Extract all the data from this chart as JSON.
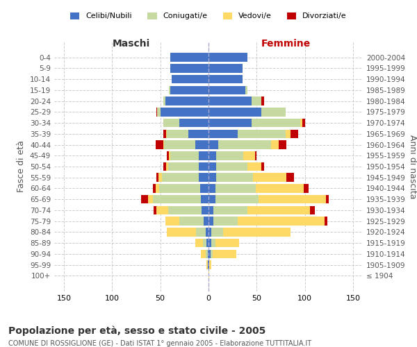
{
  "age_groups": [
    "100+",
    "95-99",
    "90-94",
    "85-89",
    "80-84",
    "75-79",
    "70-74",
    "65-69",
    "60-64",
    "55-59",
    "50-54",
    "45-49",
    "40-44",
    "35-39",
    "30-34",
    "25-29",
    "20-24",
    "15-19",
    "10-14",
    "5-9",
    "0-4"
  ],
  "birth_years": [
    "≤ 1904",
    "1905-1909",
    "1910-1914",
    "1915-1919",
    "1920-1924",
    "1925-1929",
    "1930-1934",
    "1935-1939",
    "1940-1944",
    "1945-1949",
    "1950-1954",
    "1955-1959",
    "1960-1964",
    "1965-1969",
    "1970-1974",
    "1975-1979",
    "1980-1984",
    "1985-1989",
    "1990-1994",
    "1995-1999",
    "2000-2004"
  ],
  "maschi_celibi": [
    0,
    1,
    1,
    2,
    3,
    5,
    7,
    8,
    9,
    10,
    10,
    10,
    14,
    21,
    30,
    50,
    45,
    40,
    38,
    40,
    40
  ],
  "maschi_coniugati": [
    0,
    0,
    2,
    4,
    10,
    25,
    35,
    50,
    42,
    38,
    32,
    30,
    32,
    22,
    17,
    3,
    2,
    1,
    0,
    0,
    0
  ],
  "maschi_vedovi": [
    0,
    1,
    5,
    8,
    30,
    15,
    12,
    5,
    4,
    4,
    2,
    1,
    1,
    1,
    0,
    0,
    0,
    0,
    0,
    0,
    0
  ],
  "maschi_divorziati": [
    0,
    0,
    0,
    0,
    0,
    0,
    3,
    7,
    3,
    2,
    3,
    2,
    8,
    3,
    0,
    1,
    0,
    0,
    0,
    0,
    0
  ],
  "femmine_celibi": [
    0,
    1,
    2,
    3,
    3,
    5,
    5,
    7,
    7,
    8,
    8,
    8,
    10,
    30,
    45,
    55,
    45,
    38,
    35,
    35,
    40
  ],
  "femmine_coniugati": [
    0,
    0,
    2,
    4,
    12,
    25,
    35,
    45,
    42,
    38,
    32,
    28,
    55,
    50,
    50,
    25,
    10,
    2,
    0,
    0,
    0
  ],
  "femmine_vedovi": [
    1,
    2,
    25,
    25,
    70,
    90,
    65,
    70,
    50,
    35,
    15,
    12,
    8,
    5,
    2,
    0,
    0,
    0,
    0,
    0,
    0
  ],
  "femmine_divorziati": [
    0,
    0,
    0,
    0,
    0,
    3,
    5,
    3,
    5,
    8,
    3,
    2,
    8,
    8,
    3,
    0,
    3,
    0,
    0,
    0,
    0
  ],
  "color_celibi": "#4472c4",
  "color_coniugati": "#c5d9a0",
  "color_vedovi": "#ffd966",
  "color_divorziati": "#c00000",
  "title": "Popolazione per età, sesso e stato civile - 2005",
  "subtitle": "COMUNE DI ROSSIGLIONE (GE) - Dati ISTAT 1° gennaio 2005 - Elaborazione TUTTITALIA.IT",
  "xlabel_left": "Maschi",
  "xlabel_right": "Femmine",
  "ylabel_left": "Fasce di età",
  "ylabel_right": "Anni di nascita",
  "xlim": 160,
  "background_color": "#ffffff",
  "grid_color": "#cccccc"
}
